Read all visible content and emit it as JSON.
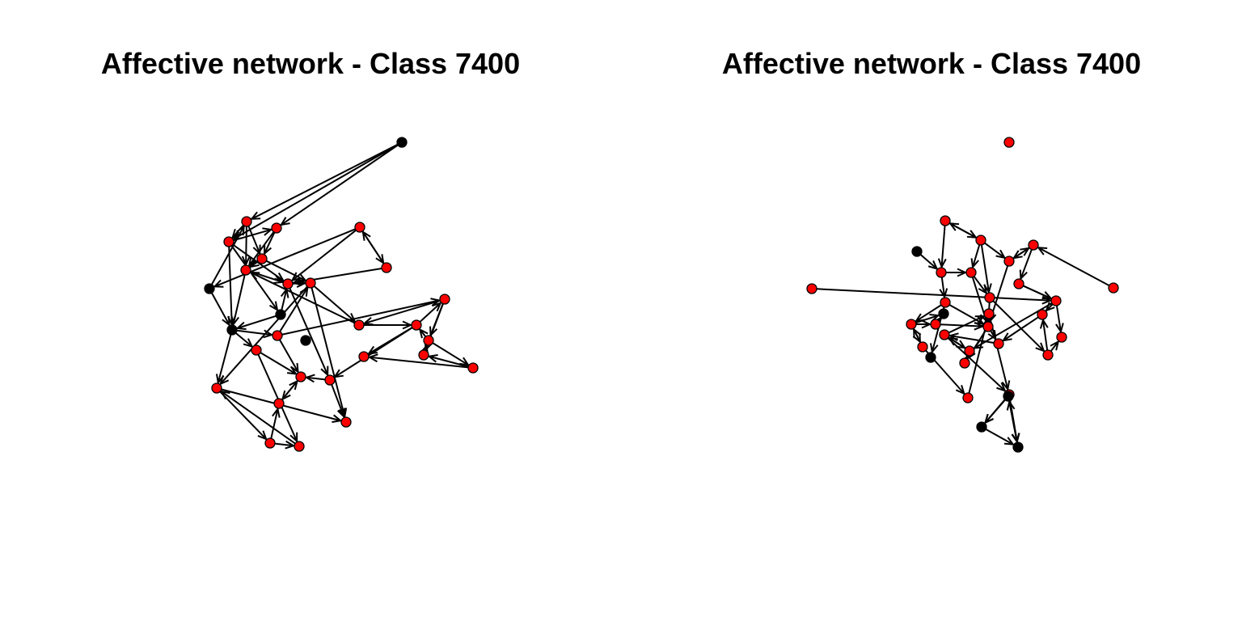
{
  "panels": [
    {
      "title": "Affective network - Class 7400",
      "node_colors": {
        "red": "#ff0000",
        "black": "#000000"
      },
      "nodes": [
        {
          "id": "a",
          "c": "black"
        },
        {
          "id": "b",
          "c": "red"
        },
        {
          "id": "c",
          "c": "red"
        },
        {
          "id": "d",
          "c": "red"
        },
        {
          "id": "e",
          "c": "red"
        },
        {
          "id": "f",
          "c": "red"
        },
        {
          "id": "g",
          "c": "red"
        },
        {
          "id": "h",
          "c": "red"
        },
        {
          "id": "i",
          "c": "red"
        },
        {
          "id": "j",
          "c": "black"
        },
        {
          "id": "k",
          "c": "black"
        },
        {
          "id": "l",
          "c": "red"
        },
        {
          "id": "m",
          "c": "red"
        },
        {
          "id": "n",
          "c": "black"
        },
        {
          "id": "o",
          "c": "red"
        },
        {
          "id": "p",
          "c": "red"
        },
        {
          "id": "q",
          "c": "red"
        },
        {
          "id": "r",
          "c": "red"
        },
        {
          "id": "s",
          "c": "red"
        },
        {
          "id": "t",
          "c": "red"
        },
        {
          "id": "u",
          "c": "red"
        },
        {
          "id": "v",
          "c": "red"
        },
        {
          "id": "w",
          "c": "red"
        },
        {
          "id": "x",
          "c": "red"
        },
        {
          "id": "y",
          "c": "red"
        },
        {
          "id": "z",
          "c": "red"
        },
        {
          "id": "aa",
          "c": "red"
        },
        {
          "id": "ab",
          "c": "red"
        },
        {
          "id": "ac",
          "c": "red"
        },
        {
          "id": "ad",
          "c": "black"
        }
      ],
      "edges": [
        [
          "a",
          "c"
        ],
        [
          "a",
          "b"
        ],
        [
          "b",
          "d"
        ],
        [
          "d",
          "c"
        ],
        [
          "b",
          "e"
        ],
        [
          "c",
          "e"
        ],
        [
          "e",
          "f"
        ],
        [
          "f",
          "g"
        ],
        [
          "d",
          "g"
        ],
        [
          "c",
          "f"
        ],
        [
          "h",
          "g"
        ],
        [
          "h",
          "i"
        ],
        [
          "i",
          "h"
        ],
        [
          "h",
          "j"
        ],
        [
          "j",
          "b"
        ],
        [
          "d",
          "k"
        ],
        [
          "k",
          "m"
        ],
        [
          "m",
          "l"
        ],
        [
          "n",
          "g"
        ],
        [
          "n",
          "k"
        ],
        [
          "k",
          "o"
        ],
        [
          "l",
          "p"
        ],
        [
          "p",
          "q"
        ],
        [
          "q",
          "r"
        ],
        [
          "r",
          "p"
        ],
        [
          "s",
          "q"
        ],
        [
          "r",
          "s"
        ],
        [
          "t",
          "s"
        ],
        [
          "s",
          "u"
        ],
        [
          "u",
          "t"
        ],
        [
          "u",
          "v"
        ],
        [
          "q",
          "v"
        ],
        [
          "q",
          "w"
        ],
        [
          "w",
          "x"
        ],
        [
          "x",
          "y"
        ],
        [
          "y",
          "x"
        ],
        [
          "z",
          "y"
        ],
        [
          "z",
          "aa"
        ],
        [
          "o",
          "aa"
        ],
        [
          "k",
          "ab"
        ],
        [
          "l",
          "ab"
        ],
        [
          "m",
          "r"
        ],
        [
          "g",
          "l"
        ],
        [
          "e",
          "l"
        ],
        [
          "f",
          "k"
        ],
        [
          "o",
          "x"
        ],
        [
          "aa",
          "ab"
        ],
        [
          "ab",
          "ac"
        ],
        [
          "ab",
          "z"
        ],
        [
          "l",
          "ac"
        ],
        [
          "w",
          "ac"
        ],
        [
          "p",
          "f"
        ],
        [
          "r",
          "t"
        ],
        [
          "i",
          "g"
        ],
        [
          "a",
          "d"
        ],
        [
          "j",
          "k"
        ],
        [
          "d",
          "n"
        ],
        [
          "m",
          "x"
        ],
        [
          "g",
          "w"
        ],
        [
          "b",
          "f"
        ]
      ]
    },
    {
      "title": "Affective network - Class 7400",
      "node_colors": {
        "red": "#ff0000",
        "black": "#000000"
      },
      "nodes": [
        {
          "id": "a",
          "c": "red"
        },
        {
          "id": "b",
          "c": "red"
        },
        {
          "id": "c",
          "c": "red"
        },
        {
          "id": "d",
          "c": "red"
        },
        {
          "id": "e",
          "c": "black"
        },
        {
          "id": "f",
          "c": "red"
        },
        {
          "id": "g",
          "c": "red"
        },
        {
          "id": "h",
          "c": "red"
        },
        {
          "id": "i",
          "c": "red"
        },
        {
          "id": "j",
          "c": "red"
        },
        {
          "id": "k",
          "c": "red"
        },
        {
          "id": "l",
          "c": "red"
        },
        {
          "id": "m",
          "c": "red"
        },
        {
          "id": "n",
          "c": "red"
        },
        {
          "id": "o",
          "c": "red"
        },
        {
          "id": "p",
          "c": "red"
        },
        {
          "id": "q",
          "c": "red"
        },
        {
          "id": "r",
          "c": "red"
        },
        {
          "id": "s",
          "c": "red"
        },
        {
          "id": "t",
          "c": "black"
        },
        {
          "id": "u",
          "c": "red"
        },
        {
          "id": "v",
          "c": "red"
        },
        {
          "id": "w",
          "c": "red"
        },
        {
          "id": "x",
          "c": "red"
        },
        {
          "id": "y",
          "c": "red"
        },
        {
          "id": "z",
          "c": "red"
        },
        {
          "id": "aa",
          "c": "black"
        },
        {
          "id": "ab",
          "c": "red"
        },
        {
          "id": "ac",
          "c": "red"
        },
        {
          "id": "ad",
          "c": "black"
        },
        {
          "id": "ae",
          "c": "black"
        },
        {
          "id": "af",
          "c": "black"
        },
        {
          "id": "ag",
          "c": "red"
        }
      ],
      "edges": [
        [
          "c",
          "d"
        ],
        [
          "d",
          "c"
        ],
        [
          "c",
          "f"
        ],
        [
          "e",
          "f"
        ],
        [
          "d",
          "g"
        ],
        [
          "f",
          "g"
        ],
        [
          "d",
          "h"
        ],
        [
          "h",
          "i"
        ],
        [
          "i",
          "h"
        ],
        [
          "j",
          "i"
        ],
        [
          "i",
          "k"
        ],
        [
          "k",
          "l"
        ],
        [
          "l",
          "m"
        ],
        [
          "l",
          "n"
        ],
        [
          "g",
          "o"
        ],
        [
          "o",
          "p"
        ],
        [
          "p",
          "m"
        ],
        [
          "f",
          "q"
        ],
        [
          "q",
          "r"
        ],
        [
          "r",
          "s"
        ],
        [
          "s",
          "r"
        ],
        [
          "q",
          "t"
        ],
        [
          "r",
          "u"
        ],
        [
          "u",
          "v"
        ],
        [
          "v",
          "w"
        ],
        [
          "w",
          "x"
        ],
        [
          "x",
          "y"
        ],
        [
          "y",
          "x"
        ],
        [
          "z",
          "y"
        ],
        [
          "v",
          "z"
        ],
        [
          "x",
          "ac"
        ],
        [
          "ab",
          "ac"
        ],
        [
          "ac",
          "ad"
        ],
        [
          "ad",
          "ae"
        ],
        [
          "ae",
          "af"
        ],
        [
          "af",
          "ad"
        ],
        [
          "af",
          "ae"
        ],
        [
          "ag",
          "ab"
        ],
        [
          "ab",
          "v"
        ],
        [
          "o",
          "v"
        ],
        [
          "k",
          "l"
        ],
        [
          "q",
          "v"
        ],
        [
          "r",
          "aa"
        ],
        [
          "u",
          "aa"
        ],
        [
          "p",
          "n"
        ],
        [
          "m",
          "w"
        ],
        [
          "l",
          "y"
        ],
        [
          "g",
          "v"
        ],
        [
          "d",
          "o"
        ],
        [
          "h",
          "v"
        ],
        [
          "b",
          "l"
        ],
        [
          "x",
          "ab"
        ],
        [
          "v",
          "ab"
        ],
        [
          "ac",
          "ae"
        ],
        [
          "s",
          "ag"
        ]
      ]
    }
  ]
}
